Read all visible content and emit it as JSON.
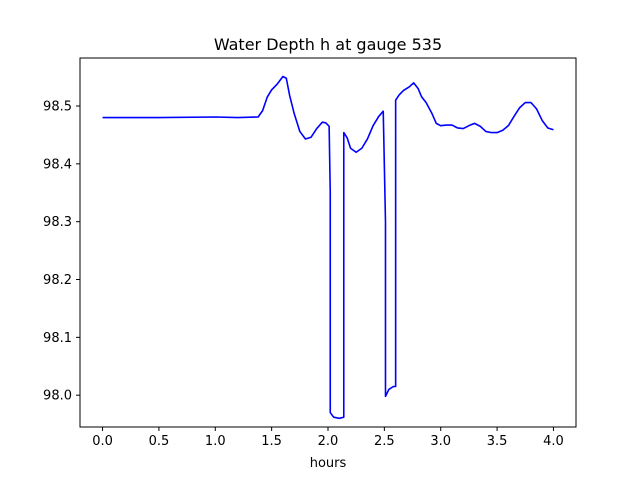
{
  "chart_data": {
    "type": "line",
    "title": "Water Depth h at gauge 535",
    "xlabel": "hours",
    "ylabel": "",
    "xlim": [
      -0.2,
      4.2
    ],
    "ylim": [
      97.945,
      98.583
    ],
    "xticks": [
      0.0,
      0.5,
      1.0,
      1.5,
      2.0,
      2.5,
      3.0,
      3.5,
      4.0
    ],
    "xtick_labels": [
      "0.0",
      "0.5",
      "1.0",
      "1.5",
      "2.0",
      "2.5",
      "3.0",
      "3.5",
      "4.0"
    ],
    "yticks": [
      98.0,
      98.1,
      98.2,
      98.3,
      98.4,
      98.5
    ],
    "ytick_labels": [
      "98.0",
      "98.1",
      "98.2",
      "98.3",
      "98.4",
      "98.5"
    ],
    "grid": false,
    "series": [
      {
        "name": "",
        "color": "#0000ff",
        "x": [
          0.0,
          0.5,
          1.0,
          1.2,
          1.38,
          1.42,
          1.46,
          1.5,
          1.55,
          1.6,
          1.63,
          1.66,
          1.7,
          1.75,
          1.8,
          1.85,
          1.9,
          1.95,
          1.98,
          2.01,
          2.02,
          2.02,
          2.05,
          2.1,
          2.14,
          2.14,
          2.17,
          2.2,
          2.25,
          2.3,
          2.35,
          2.4,
          2.45,
          2.49,
          2.51,
          2.51,
          2.54,
          2.58,
          2.6,
          2.6,
          2.63,
          2.67,
          2.72,
          2.76,
          2.8,
          2.83,
          2.87,
          2.92,
          2.96,
          3.0,
          3.05,
          3.1,
          3.15,
          3.2,
          3.25,
          3.3,
          3.35,
          3.4,
          3.45,
          3.5,
          3.55,
          3.6,
          3.65,
          3.7,
          3.75,
          3.8,
          3.85,
          3.9,
          3.95,
          4.0
        ],
        "y": [
          98.48,
          98.48,
          98.481,
          98.48,
          98.481,
          98.492,
          98.515,
          98.528,
          98.538,
          98.551,
          98.548,
          98.518,
          98.487,
          98.456,
          98.443,
          98.446,
          98.461,
          98.472,
          98.471,
          98.465,
          98.35,
          97.97,
          97.962,
          97.96,
          97.962,
          98.454,
          98.445,
          98.427,
          98.42,
          98.427,
          98.443,
          98.466,
          98.482,
          98.491,
          98.3,
          97.998,
          98.01,
          98.015,
          98.015,
          98.51,
          98.519,
          98.527,
          98.533,
          98.54,
          98.53,
          98.516,
          98.506,
          98.488,
          98.47,
          98.466,
          98.467,
          98.467,
          98.462,
          98.461,
          98.466,
          98.47,
          98.465,
          98.456,
          98.454,
          98.454,
          98.458,
          98.466,
          98.482,
          98.497,
          98.506,
          98.506,
          98.495,
          98.475,
          98.462,
          98.459
        ]
      }
    ]
  }
}
